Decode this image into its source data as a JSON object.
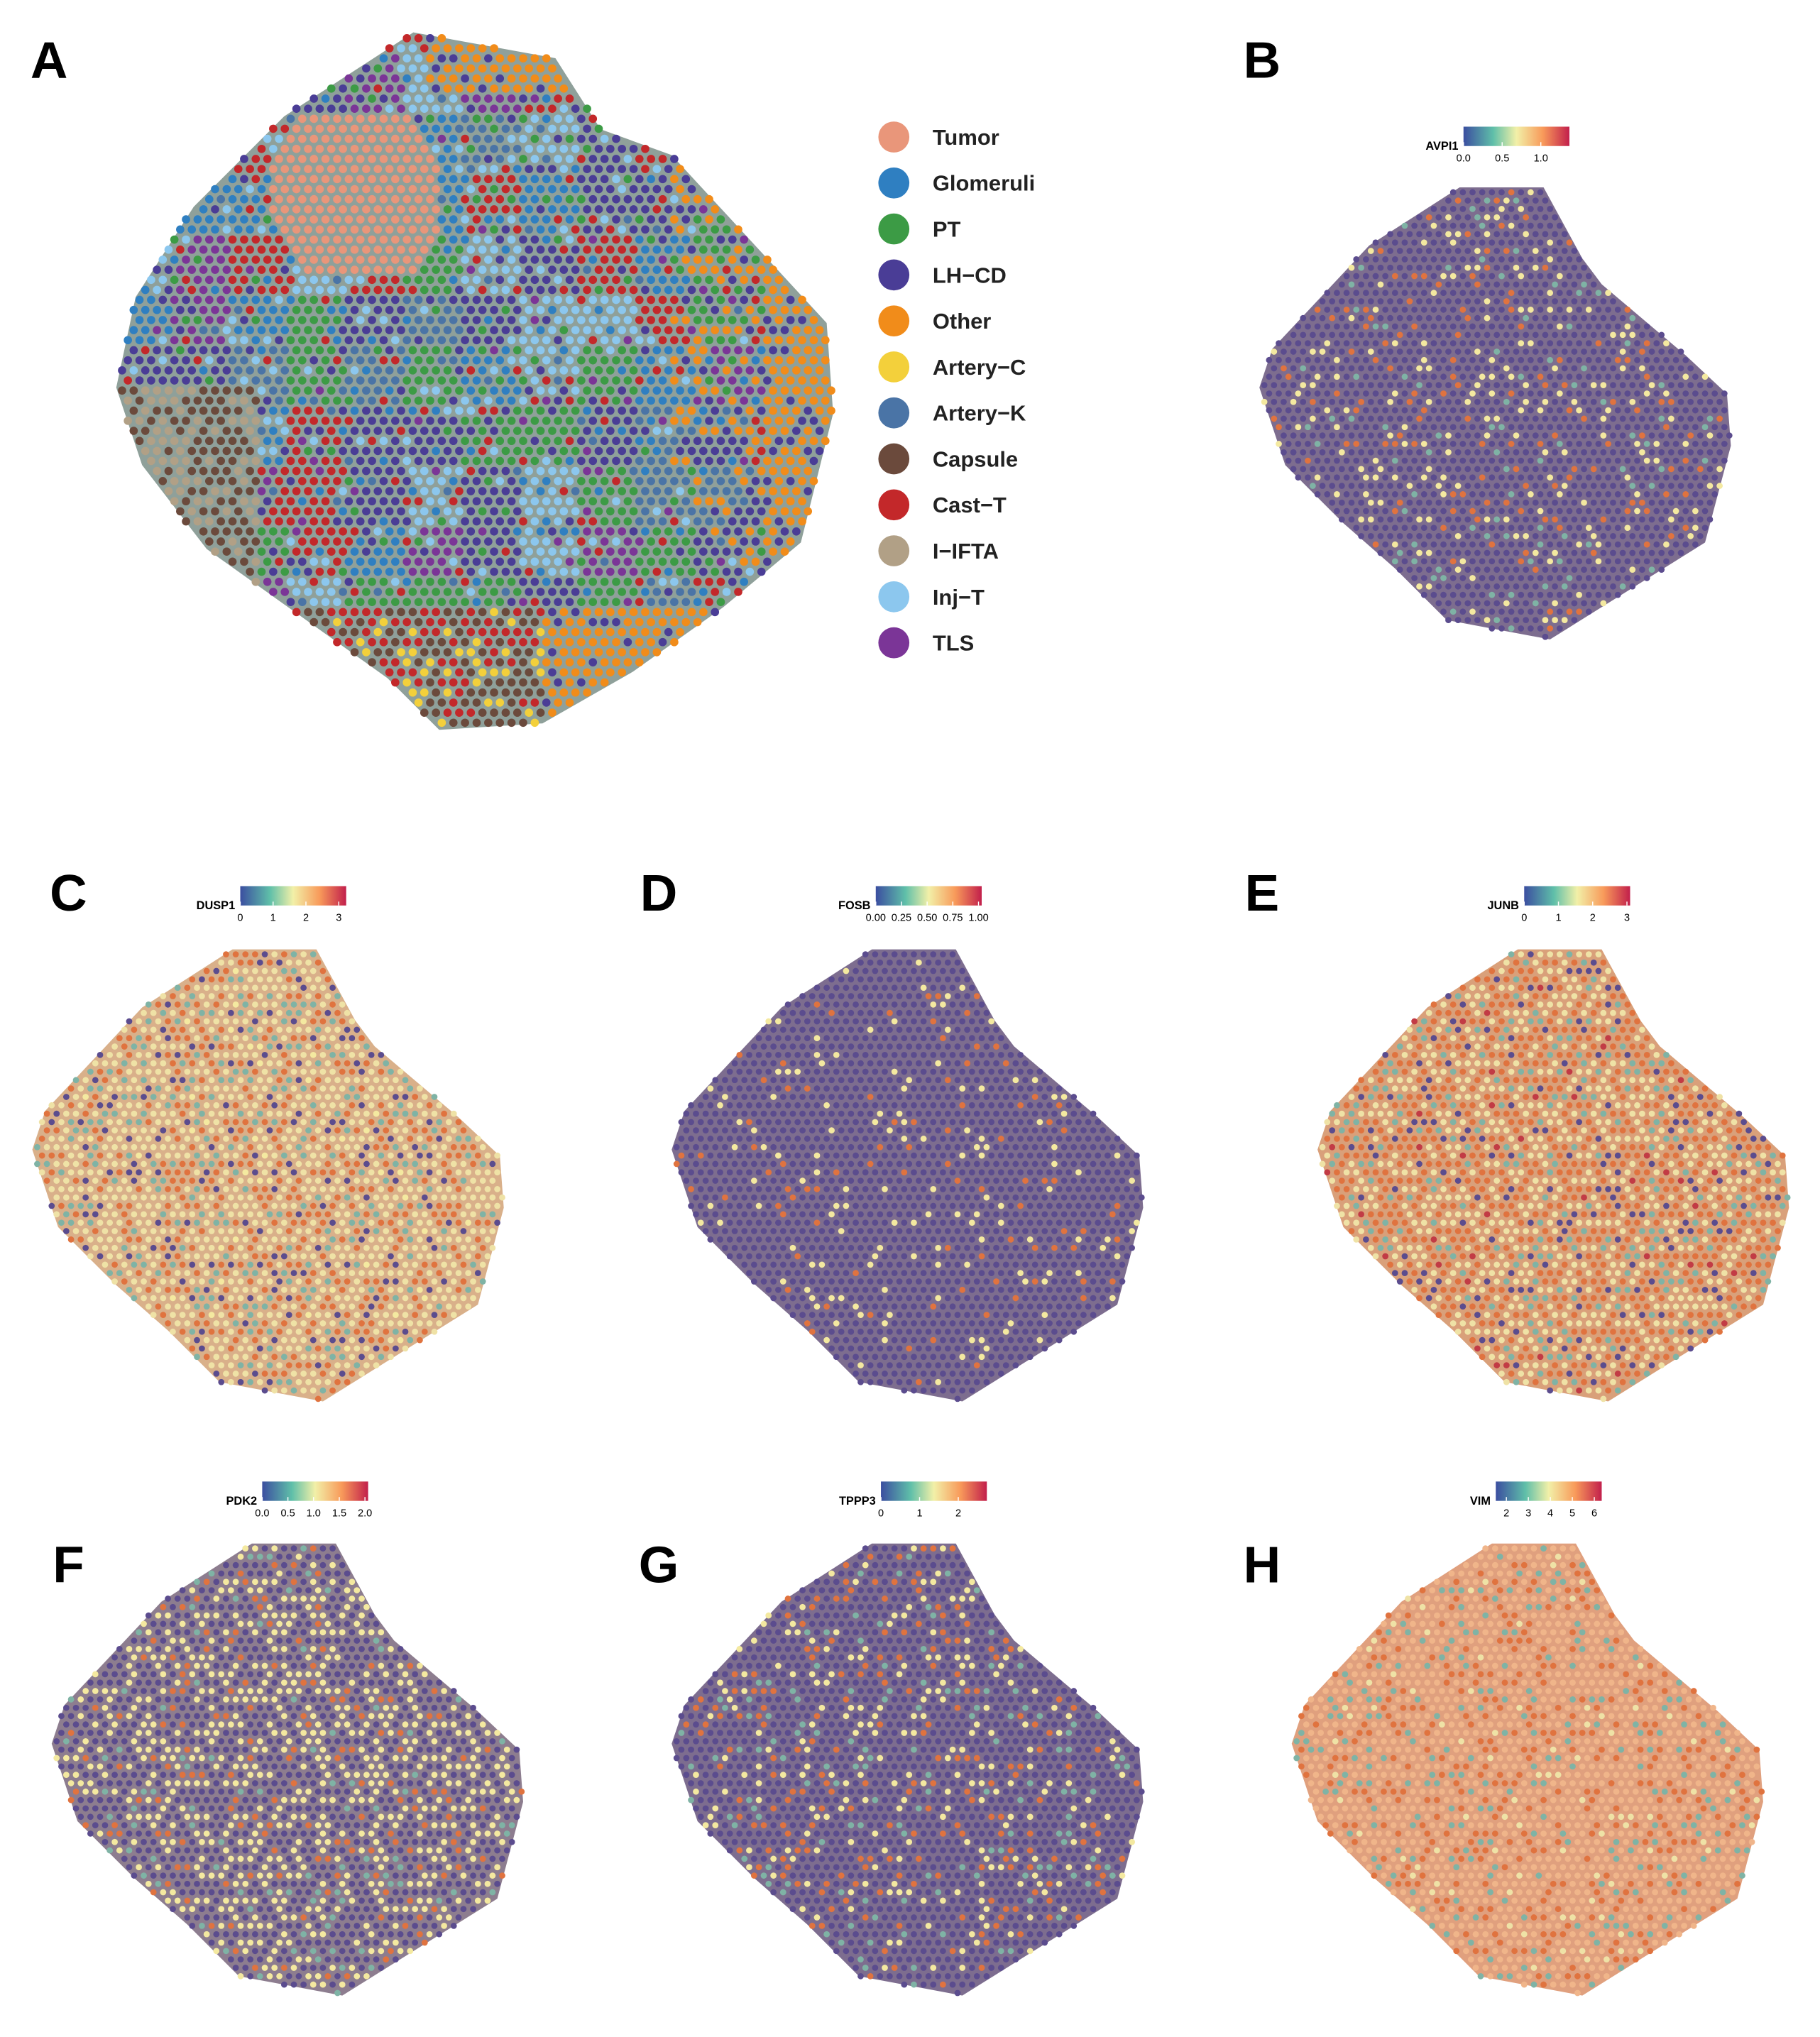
{
  "panels": [
    {
      "label": "A",
      "legend": [
        {
          "name": "Tumor",
          "color": "#e9967a"
        },
        {
          "name": "Glomeruli",
          "color": "#2f7fc1"
        },
        {
          "name": "PT",
          "color": "#3c9b45"
        },
        {
          "name": "LH−CD",
          "color": "#4a3d96"
        },
        {
          "name": "Other",
          "color": "#f18c1a"
        },
        {
          "name": "Artery−C",
          "color": "#f3d03b"
        },
        {
          "name": "Artery−K",
          "color": "#4a74a6"
        },
        {
          "name": "Capsule",
          "color": "#6b4a3c"
        },
        {
          "name": "Cast−T",
          "color": "#c3282a"
        },
        {
          "name": "I−IFTA",
          "color": "#b1a086"
        },
        {
          "name": "Inj−T",
          "color": "#8cc7ee"
        },
        {
          "name": "TLS",
          "color": "#7b3597"
        }
      ]
    },
    {
      "label": "B",
      "gene": "AVPI1",
      "ticks": [
        "0.0",
        "0.5",
        "1.0"
      ]
    },
    {
      "label": "C",
      "gene": "DUSP1",
      "ticks": [
        "0",
        "1",
        "2",
        "3"
      ]
    },
    {
      "label": "D",
      "gene": "FOSB",
      "ticks": [
        "0.00",
        "0.25",
        "0.50",
        "0.75",
        "1.00"
      ]
    },
    {
      "label": "E",
      "gene": "JUNB",
      "ticks": [
        "0",
        "1",
        "2",
        "3"
      ]
    },
    {
      "label": "F",
      "gene": "PDK2",
      "ticks": [
        "0.0",
        "0.5",
        "1.0",
        "1.5",
        "2.0"
      ]
    },
    {
      "label": "G",
      "gene": "TPPP3",
      "ticks": [
        "0",
        "1",
        "2"
      ]
    },
    {
      "label": "H",
      "gene": "VIM",
      "ticks": [
        "2",
        "3",
        "4",
        "5",
        "6"
      ]
    }
  ]
}
